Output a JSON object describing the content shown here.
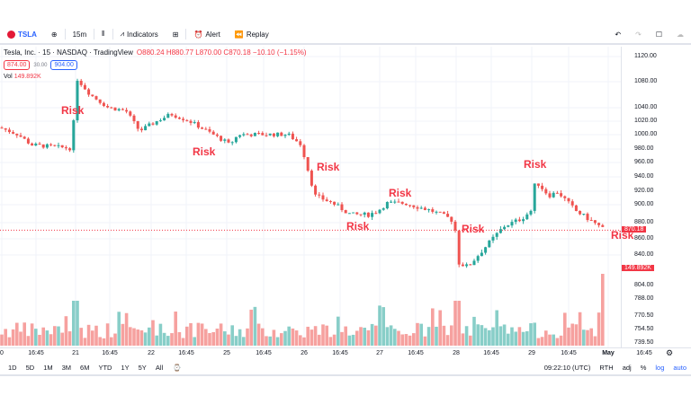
{
  "toolbar": {
    "symbol": "TSLA",
    "interval": "15m",
    "indicators": "Indicators",
    "alert": "Alert",
    "replay": "Replay"
  },
  "legend": {
    "title": "Tesla, Inc. · 15 · NASDAQ · TradingView",
    "ohlc": "O880.24 H880.77 L870.00 C870.18 −10.10 (−1.15%)",
    "bid": "874.00",
    "spread": "30.00",
    "ask": "904.00",
    "vol_label": "Vol",
    "vol_value": "149.892K"
  },
  "price_axis": {
    "ticks": [
      "1120.00",
      "1080.00",
      "1040.00",
      "1020.00",
      "1000.00",
      "980.00",
      "960.00",
      "940.00",
      "920.00",
      "900.00",
      "880.00",
      "860.00",
      "840.00"
    ],
    "volume_ticks": [
      "804.00",
      "788.00",
      "770.50",
      "754.50",
      "739.50"
    ],
    "last_price": "870.18",
    "last_volume": "149.892K"
  },
  "time_axis": [
    "0",
    "16:45",
    "21",
    "16:45",
    "22",
    "16:45",
    "25",
    "16:45",
    "26",
    "16:45",
    "27",
    "16:45",
    "28",
    "16:45",
    "29",
    "16:45",
    "May",
    "16:45"
  ],
  "annotations": [
    "Risk",
    "Risk",
    "Risk",
    "Risk",
    "Risk",
    "Risk",
    "Risk",
    "Risk"
  ],
  "bottom": {
    "ranges": [
      "1D",
      "5D",
      "1M",
      "3M",
      "6M",
      "YTD",
      "1Y",
      "5Y",
      "All"
    ],
    "time": "09:22:10 (UTC)",
    "rth": "RTH",
    "adj": "adj",
    "pct": "%",
    "log": "log",
    "auto": "auto"
  },
  "colors": {
    "up": "#26a69a",
    "down": "#ef5350",
    "accent": "#2962ff"
  },
  "chart_data": {
    "type": "candlestick",
    "scale": "log",
    "ylim": [
      820,
      1125
    ],
    "approx_close_path": [
      1010,
      1000,
      985,
      980,
      1085,
      1060,
      1040,
      1035,
      1005,
      1020,
      1030,
      1020,
      990,
      985,
      1000,
      1000,
      985,
      960,
      915,
      905,
      890,
      890,
      895,
      905,
      905,
      895,
      885,
      880,
      830,
      825,
      850,
      875,
      885,
      895,
      935,
      915,
      920,
      895,
      880,
      870.18
    ]
  }
}
